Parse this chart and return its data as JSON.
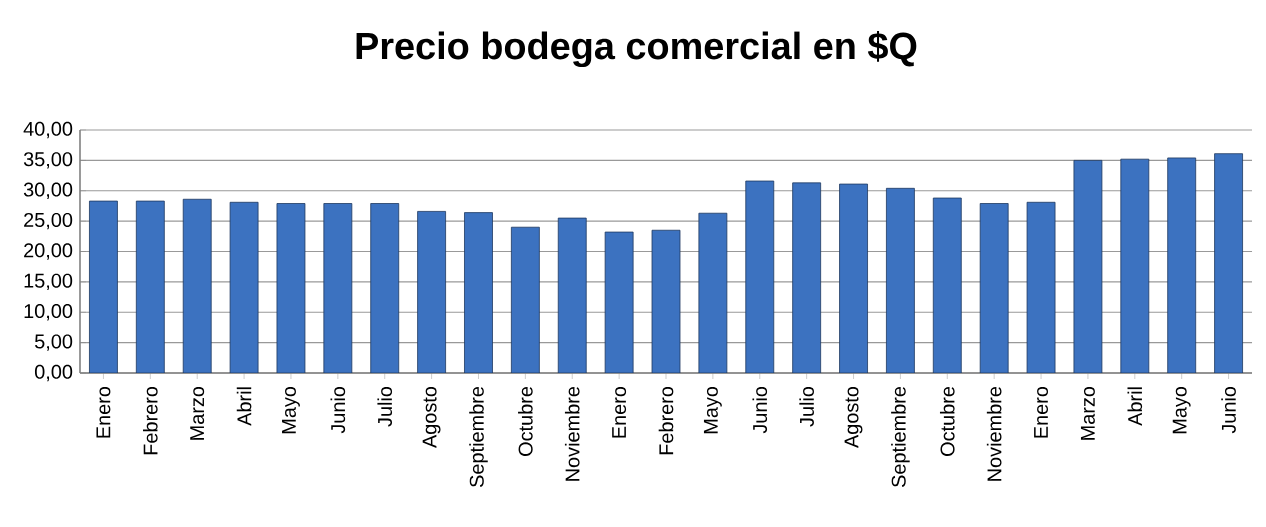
{
  "chart_data": {
    "type": "bar",
    "title": "Precio bodega comercial en $Q",
    "categories": [
      "Enero",
      "Febrero",
      "Marzo",
      "Abril",
      "Mayo",
      "Junio",
      "Julio",
      "Agosto",
      "Septiembre",
      "Octubre",
      "Noviembre",
      "Enero",
      "Febrero",
      "Mayo",
      "Junio",
      "Julio",
      "Agosto",
      "Septiembre",
      "Octubre",
      "Noviembre",
      "Enero",
      "Marzo",
      "Abril",
      "Mayo",
      "Junio"
    ],
    "values": [
      28.3,
      28.3,
      28.6,
      28.1,
      27.9,
      27.9,
      27.9,
      26.6,
      26.4,
      24.0,
      25.5,
      23.2,
      23.5,
      26.3,
      31.6,
      31.3,
      31.1,
      30.4,
      28.8,
      27.9,
      28.1,
      35.0,
      35.2,
      35.4,
      36.1
    ],
    "color": "#3c72c0",
    "ylim": [
      0,
      40
    ],
    "yticks": [
      {
        "value": 0,
        "label": "0,00"
      },
      {
        "value": 5,
        "label": "5,00"
      },
      {
        "value": 10,
        "label": "10,00"
      },
      {
        "value": 15,
        "label": "15,00"
      },
      {
        "value": 20,
        "label": "20,00"
      },
      {
        "value": 25,
        "label": "25,00"
      },
      {
        "value": 30,
        "label": "30,00"
      },
      {
        "value": 35,
        "label": "35,00"
      },
      {
        "value": 40,
        "label": "40,00"
      }
    ],
    "grid": "y"
  }
}
